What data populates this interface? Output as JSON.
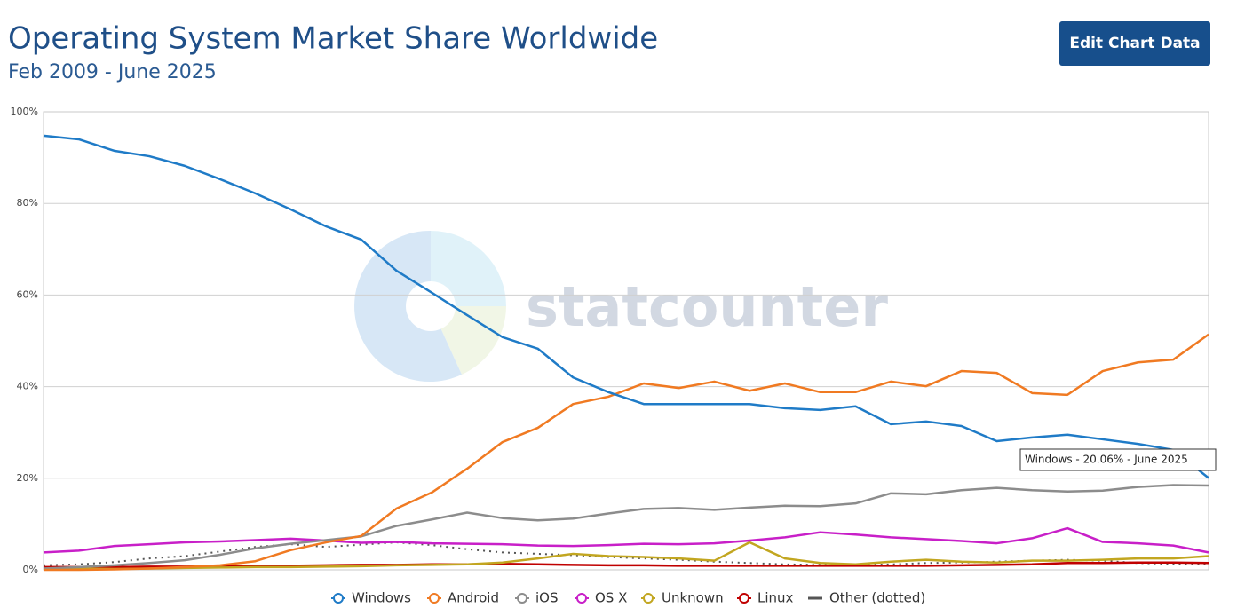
{
  "chart_data": {
    "type": "line",
    "title": "Operating System Market Share Worldwide",
    "subtitle": "Feb 2009 - June 2025",
    "button": "Edit Chart Data",
    "watermark": "statcounter",
    "tooltip": "Windows - 20.06% - June 2025",
    "ylim": [
      0,
      100
    ],
    "yticks": [
      {
        "value": 0,
        "label": "0%"
      },
      {
        "value": 20,
        "label": "20%"
      },
      {
        "value": 40,
        "label": "40%"
      },
      {
        "value": 60,
        "label": "60%"
      },
      {
        "value": 80,
        "label": "80%"
      },
      {
        "value": 100,
        "label": "100%"
      }
    ],
    "grid": true,
    "legend": "bottom",
    "series": [
      {
        "name": "Windows",
        "color": "#1f7bc7",
        "values": [
          94.8,
          94,
          91.5,
          90.3,
          88.2,
          85.3,
          82.2,
          78.7,
          75,
          72.1,
          65.3,
          60.5,
          55.6,
          50.8,
          48.3,
          42,
          38.8,
          36.2,
          36.2,
          36.2,
          36.2,
          35.3,
          34.9,
          35.7,
          31.8,
          32.4,
          31.4,
          28.1,
          28.9,
          29.5,
          28.5,
          27.5,
          26.2,
          20.06
        ]
      },
      {
        "name": "Android",
        "color": "#f07a22",
        "values": [
          0,
          0,
          0.1,
          0.3,
          0.6,
          1.0,
          1.9,
          4.3,
          6,
          7.4,
          13.4,
          16.9,
          22.1,
          27.9,
          31,
          36.2,
          37.8,
          40.7,
          39.7,
          41.1,
          39.1,
          40.7,
          38.8,
          38.8,
          41.1,
          40.1,
          43.4,
          43,
          38.6,
          38.2,
          43.4,
          45.3,
          45.9,
          51.4
        ]
      },
      {
        "name": "iOS",
        "color": "#8c8c8c",
        "values": [
          0.3,
          0.6,
          1.0,
          1.5,
          2.1,
          3.3,
          4.7,
          5.7,
          6.5,
          7.3,
          9.6,
          11,
          12.5,
          11.3,
          10.8,
          11.2,
          12.3,
          13.3,
          13.5,
          13.1,
          13.6,
          14,
          13.9,
          14.5,
          16.7,
          16.5,
          17.4,
          17.9,
          17.4,
          17.1,
          17.3,
          18.1,
          18.5,
          18.4
        ]
      },
      {
        "name": "OS X",
        "color": "#c81fc8",
        "values": [
          3.8,
          4.2,
          5.2,
          5.6,
          6,
          6.2,
          6.5,
          6.8,
          6.4,
          5.9,
          6.1,
          5.8,
          5.7,
          5.6,
          5.3,
          5.2,
          5.4,
          5.7,
          5.6,
          5.8,
          6.4,
          7.1,
          8.2,
          7.7,
          7.1,
          6.7,
          6.3,
          5.8,
          6.9,
          9.1,
          6.1,
          5.8,
          5.3,
          3.8
        ]
      },
      {
        "name": "Unknown",
        "color": "#c2a620",
        "values": [
          0.2,
          0.3,
          0.2,
          0.3,
          0.4,
          0.5,
          0.6,
          0.6,
          0.7,
          0.8,
          1.0,
          1.1,
          1.2,
          1.6,
          2.5,
          3.5,
          3.0,
          2.8,
          2.5,
          2.0,
          6.0,
          2.5,
          1.5,
          1.2,
          1.8,
          2.2,
          1.8,
          1.6,
          2.0,
          2.0,
          2.2,
          2.5,
          2.5,
          3.0
        ]
      },
      {
        "name": "Linux",
        "color": "#c00000",
        "values": [
          0.6,
          0.6,
          0.6,
          0.7,
          0.7,
          0.8,
          0.8,
          0.9,
          1.0,
          1.1,
          1.1,
          1.2,
          1.2,
          1.3,
          1.2,
          1.1,
          1.0,
          1.0,
          0.9,
          0.9,
          0.9,
          0.9,
          0.9,
          0.9,
          0.9,
          0.9,
          1.0,
          1.1,
          1.2,
          1.5,
          1.5,
          1.6,
          1.6,
          1.5
        ]
      },
      {
        "name": "Other (dotted)",
        "color": "#555555",
        "dotted": true,
        "values": [
          1.0,
          1.2,
          1.7,
          2.5,
          3.0,
          4.0,
          5.0,
          5.6,
          5.0,
          5.5,
          6.0,
          5.4,
          4.5,
          3.8,
          3.5,
          3.2,
          2.8,
          2.5,
          2.2,
          1.8,
          1.5,
          1.2,
          1.1,
          1.0,
          1.2,
          1.5,
          1.6,
          1.8,
          2.0,
          2.2,
          2.0,
          1.5,
          1.3,
          1.2
        ]
      }
    ]
  }
}
